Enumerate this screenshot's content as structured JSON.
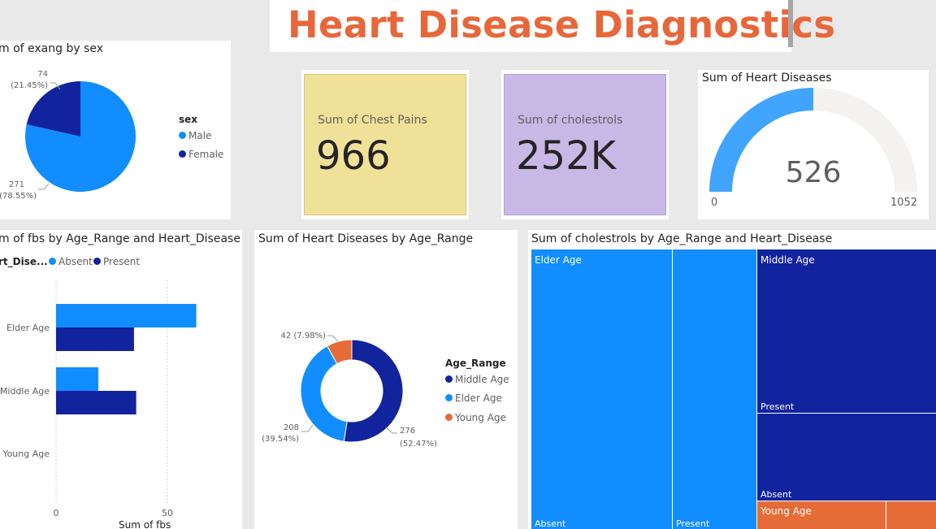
{
  "page": {
    "title": "Heart Disease Diagnostics"
  },
  "colors": {
    "light_blue": "#118dff",
    "dark_blue": "#12239e",
    "orange": "#e66c37",
    "gauge_fill": "#41a4ff",
    "gauge_track": "#f3f2f1",
    "kpi_yellow": "#f0e199",
    "kpi_purple": "#c8b8e6",
    "title_orange": "#e8673a"
  },
  "cards": {
    "chest_pains": {
      "label": "Sum of Chest Pains",
      "value": "966"
    },
    "cholestrols": {
      "label": "Sum of cholestrols",
      "value": "252K"
    }
  },
  "gauge": {
    "title": "Sum of Heart Diseases",
    "value": 526,
    "value_label": "526",
    "min_label": "0",
    "max_label": "1052",
    "min": 0,
    "max": 1052
  },
  "chart_data": [
    {
      "id": "pie_exang",
      "type": "pie",
      "title": "m of exang by sex",
      "legend_title": "sex",
      "legend": [
        "Male",
        "Female"
      ],
      "slices": [
        {
          "name": "Male",
          "value": 271,
          "label_value": "271",
          "label_pct": "(78.55%)",
          "color": "#118dff"
        },
        {
          "name": "Female",
          "value": 74,
          "label_value": "74",
          "label_pct": "(21.45%)",
          "color": "#12239e"
        }
      ]
    },
    {
      "id": "bar_fbs",
      "type": "bar",
      "orientation": "horizontal",
      "title": "m of fbs by Age_Range and Heart_Disease",
      "legend_title": "rt_Dise...",
      "categories": [
        "Elder Age",
        "Middle Age",
        "Young Age"
      ],
      "series": [
        {
          "name": "Absent",
          "color": "#118dff",
          "values": [
            63,
            19,
            0
          ]
        },
        {
          "name": "Present",
          "color": "#12239e",
          "values": [
            35,
            36,
            0
          ]
        }
      ],
      "xlim": [
        0,
        65
      ],
      "x_ticks": [
        "0",
        "50"
      ],
      "xlabel": "Sum of fbs",
      "grid": true
    },
    {
      "id": "donut_age",
      "type": "pie",
      "variant": "donut",
      "title": "Sum of Heart Diseases by Age_Range",
      "legend_title": "Age_Range",
      "legend": [
        "Middle Age",
        "Elder Age",
        "Young Age"
      ],
      "slices": [
        {
          "name": "Middle Age",
          "value": 276,
          "label": "276",
          "label2": "(52.47%)",
          "color": "#12239e"
        },
        {
          "name": "Elder Age",
          "value": 208,
          "label": "208",
          "label2": "(39.54%)",
          "color": "#118dff"
        },
        {
          "name": "Young Age",
          "value": 42,
          "label": "42 (7.98%)",
          "label2": "",
          "color": "#e66c37"
        }
      ]
    },
    {
      "id": "treemap_chol",
      "type": "treemap",
      "title": "Sum of cholestrols by Age_Range and Heart_Disease",
      "groups": [
        {
          "name": "Elder Age",
          "children": [
            {
              "name": "Absent"
            },
            {
              "name": "Present"
            }
          ]
        },
        {
          "name": "Middle Age",
          "children": [
            {
              "name": "Present"
            },
            {
              "name": "Absent"
            }
          ]
        },
        {
          "name": "Young Age",
          "children": []
        }
      ]
    }
  ]
}
